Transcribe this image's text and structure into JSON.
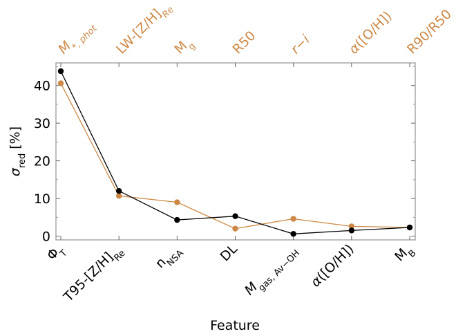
{
  "chart_data": {
    "type": "line",
    "xlabel": "Feature",
    "ylabel": "σred [%]",
    "ylim": [
      -1,
      46
    ],
    "yticks": [
      0,
      10,
      20,
      30,
      40
    ],
    "grid": false,
    "categories": [
      "ΦT",
      "T95-[Z/H]Re",
      "nNSA",
      "DL",
      "Mgas, Av−OH",
      "α([O/H])",
      "MB"
    ],
    "top_categories": [
      "M*, phot",
      "LW-[Z/H]Re",
      "Mg",
      "R50",
      "r−i",
      "α([O/H])",
      "R90/R50"
    ],
    "top_label_color": "#cc8844",
    "series": [
      {
        "axis": "bottom",
        "color": "#000000",
        "values": [
          43.8,
          12.0,
          4.3,
          5.3,
          0.6,
          1.5,
          2.3
        ]
      },
      {
        "axis": "top",
        "color": "#cc8844",
        "values": [
          40.6,
          10.7,
          9.0,
          2.0,
          4.6,
          2.6,
          2.3
        ]
      }
    ]
  }
}
